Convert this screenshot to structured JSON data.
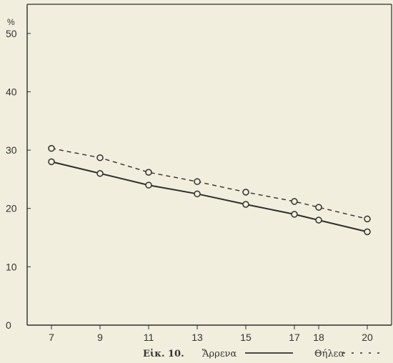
{
  "chart_data": {
    "type": "line",
    "x": [
      7,
      9,
      11,
      13,
      15,
      17,
      18,
      20
    ],
    "x_ticks": [
      "7",
      "9",
      "11",
      "13",
      "15",
      "17",
      "18",
      "20"
    ],
    "y_ticks": [
      "0",
      "10",
      "20",
      "30",
      "40",
      "50"
    ],
    "y_unit": "%",
    "xlim": [
      6,
      21
    ],
    "ylim": [
      0,
      55
    ],
    "grid": false,
    "series": [
      {
        "name": "Ἄρρενα",
        "style": "solid",
        "values": [
          28,
          26,
          24,
          22.5,
          20.7,
          19,
          18,
          16
        ]
      },
      {
        "name": "Θήλεα",
        "style": "dashed",
        "values": [
          30.3,
          28.7,
          26.2,
          24.6,
          22.8,
          21.2,
          20.2,
          18.2
        ]
      }
    ],
    "caption": {
      "figure_label": "Εἰκ. 10.",
      "legend_male": "Ἄρρενα",
      "legend_female": "Θήλεα"
    },
    "colors": {
      "ink": "#2f2f2f",
      "paper": "#f1eedd"
    }
  }
}
